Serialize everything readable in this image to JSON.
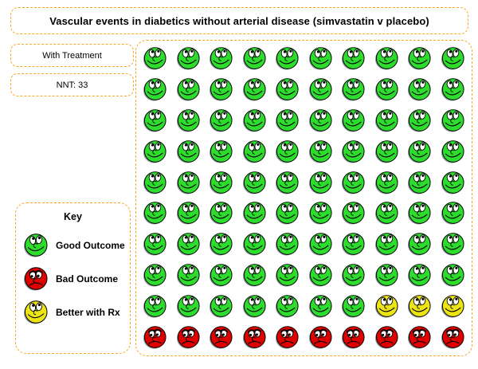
{
  "title": "Vascular events in diabetics without arterial disease (simvastatin v placebo)",
  "info": {
    "treatment_label": "With Treatment",
    "nnt_label": "NNT: 33"
  },
  "key": {
    "title": "Key",
    "items": [
      {
        "code": "G",
        "icon": "green-smiley-face-icon",
        "label": "Good Outcome"
      },
      {
        "code": "R",
        "icon": "red-frowny-face-icon",
        "label": "Bad Outcome"
      },
      {
        "code": "Y",
        "icon": "yellow-smiley-face-icon",
        "label": "Better with Rx"
      }
    ]
  },
  "colors": {
    "border_orange": "#F9A825",
    "face_green": "#2EDC2E",
    "face_red": "#DF0000",
    "face_yellow": "#EDE414",
    "face_shadow_gray": "#8F98A1"
  },
  "chart_data": {
    "type": "pictograph",
    "title": "Vascular events in diabetics without arterial disease (simvastatin v placebo)",
    "scenario": "With Treatment",
    "nnt": 33,
    "rows": 10,
    "cols": 10,
    "total_faces": 100,
    "counts": {
      "good_outcome": 87,
      "bad_outcome": 10,
      "better_with_rx": 3
    },
    "legend": [
      {
        "symbol": "green smiley face",
        "label": "Good Outcome",
        "count": 87
      },
      {
        "symbol": "red frowny face",
        "label": "Bad Outcome",
        "count": 10
      },
      {
        "symbol": "yellow smiley face",
        "label": "Better with Rx",
        "count": 3
      }
    ],
    "grid_code_key": {
      "G": "good outcome (green)",
      "Y": "better with Rx (yellow)",
      "R": "bad outcome (red)"
    },
    "grid_rows": [
      "GGGGGGGGGG",
      "GGGGGGGGGG",
      "GGGGGGGGGG",
      "GGGGGGGGGG",
      "GGGGGGGGGG",
      "GGGGGGGGGG",
      "GGGGGGGGGG",
      "GGGGGGGGGG",
      "GGGGGGGYYY",
      "RRRRRRRRRR"
    ]
  }
}
